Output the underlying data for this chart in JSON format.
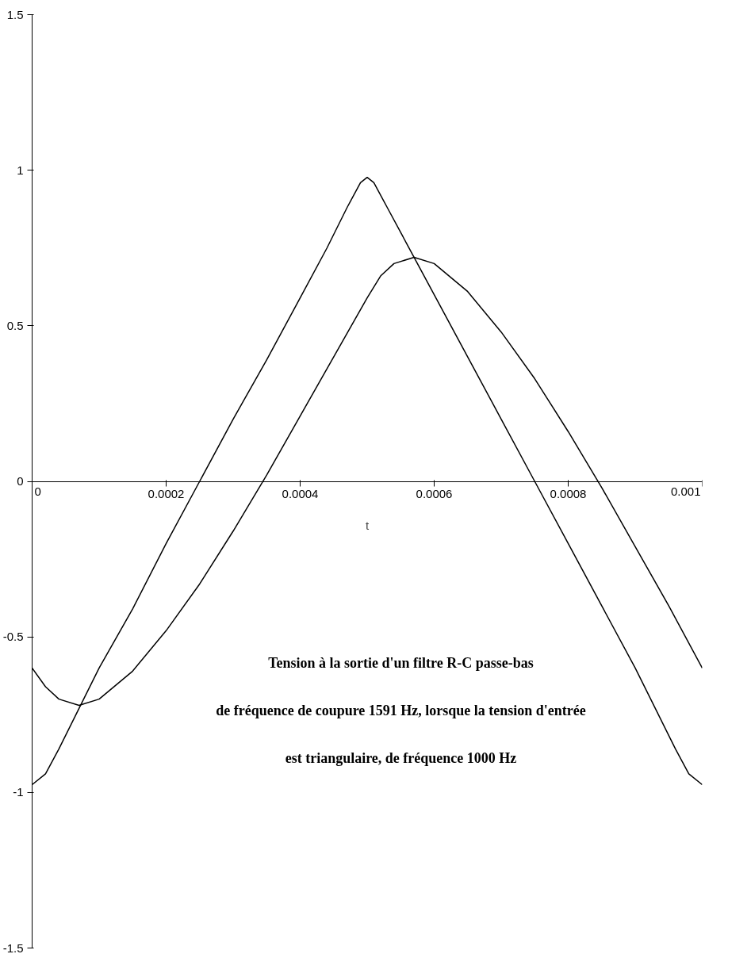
{
  "chart_data": {
    "type": "line",
    "xlabel": "t",
    "annotations": [
      "Tension à la sortie d'un filtre R-C passe-bas",
      "de fréquence de coupure 1591 Hz, lorsque la tension d'entrée",
      "est triangulaire, de fréquence 1000 Hz"
    ],
    "series": [
      {
        "color": "#000000",
        "x": [
          0,
          2e-05,
          4e-05,
          7e-05,
          0.0001,
          0.00015,
          0.0002,
          0.00025,
          0.0003,
          0.00035,
          0.0004,
          0.00044,
          0.00047,
          0.00049,
          0.0005,
          0.00051,
          0.00053,
          0.00056,
          0.0006,
          0.00065,
          0.0007,
          0.00075,
          0.0008,
          0.00085,
          0.0009,
          0.00093,
          0.00096,
          0.00098,
          0.001
        ],
        "values": [
          -0.975,
          -0.94,
          -0.86,
          -0.73,
          -0.6,
          -0.41,
          -0.2,
          0.0,
          0.2,
          0.39,
          0.59,
          0.75,
          0.88,
          0.96,
          0.977,
          0.96,
          0.88,
          0.76,
          0.6,
          0.4,
          0.2,
          0.0,
          -0.2,
          -0.4,
          -0.6,
          -0.73,
          -0.86,
          -0.94,
          -0.975
        ]
      },
      {
        "color": "#000000",
        "x": [
          0,
          2e-05,
          4e-05,
          7e-05,
          0.0001,
          0.00015,
          0.0002,
          0.00025,
          0.0003,
          0.00035,
          0.0004,
          0.00045,
          0.0005,
          0.00052,
          0.00054,
          0.00057,
          0.0006,
          0.00065,
          0.0007,
          0.00075,
          0.0008,
          0.00085,
          0.0009,
          0.00095,
          0.001
        ],
        "values": [
          -0.6,
          -0.66,
          -0.7,
          -0.72,
          -0.7,
          -0.61,
          -0.48,
          -0.33,
          -0.16,
          0.02,
          0.21,
          0.4,
          0.59,
          0.66,
          0.7,
          0.72,
          0.7,
          0.61,
          0.48,
          0.33,
          0.16,
          -0.02,
          -0.21,
          -0.4,
          -0.6
        ]
      }
    ],
    "xlim": [
      0,
      0.001
    ],
    "xticks": [
      0,
      0.0002,
      0.0004,
      0.0006,
      0.0008,
      0.001
    ],
    "ylim": [
      -1.5,
      1.5
    ],
    "yticks": [
      -1.5,
      -1,
      -0.5,
      0,
      0.5,
      1,
      1.5
    ],
    "grid": false,
    "marker": "none",
    "line_style": "solid"
  }
}
